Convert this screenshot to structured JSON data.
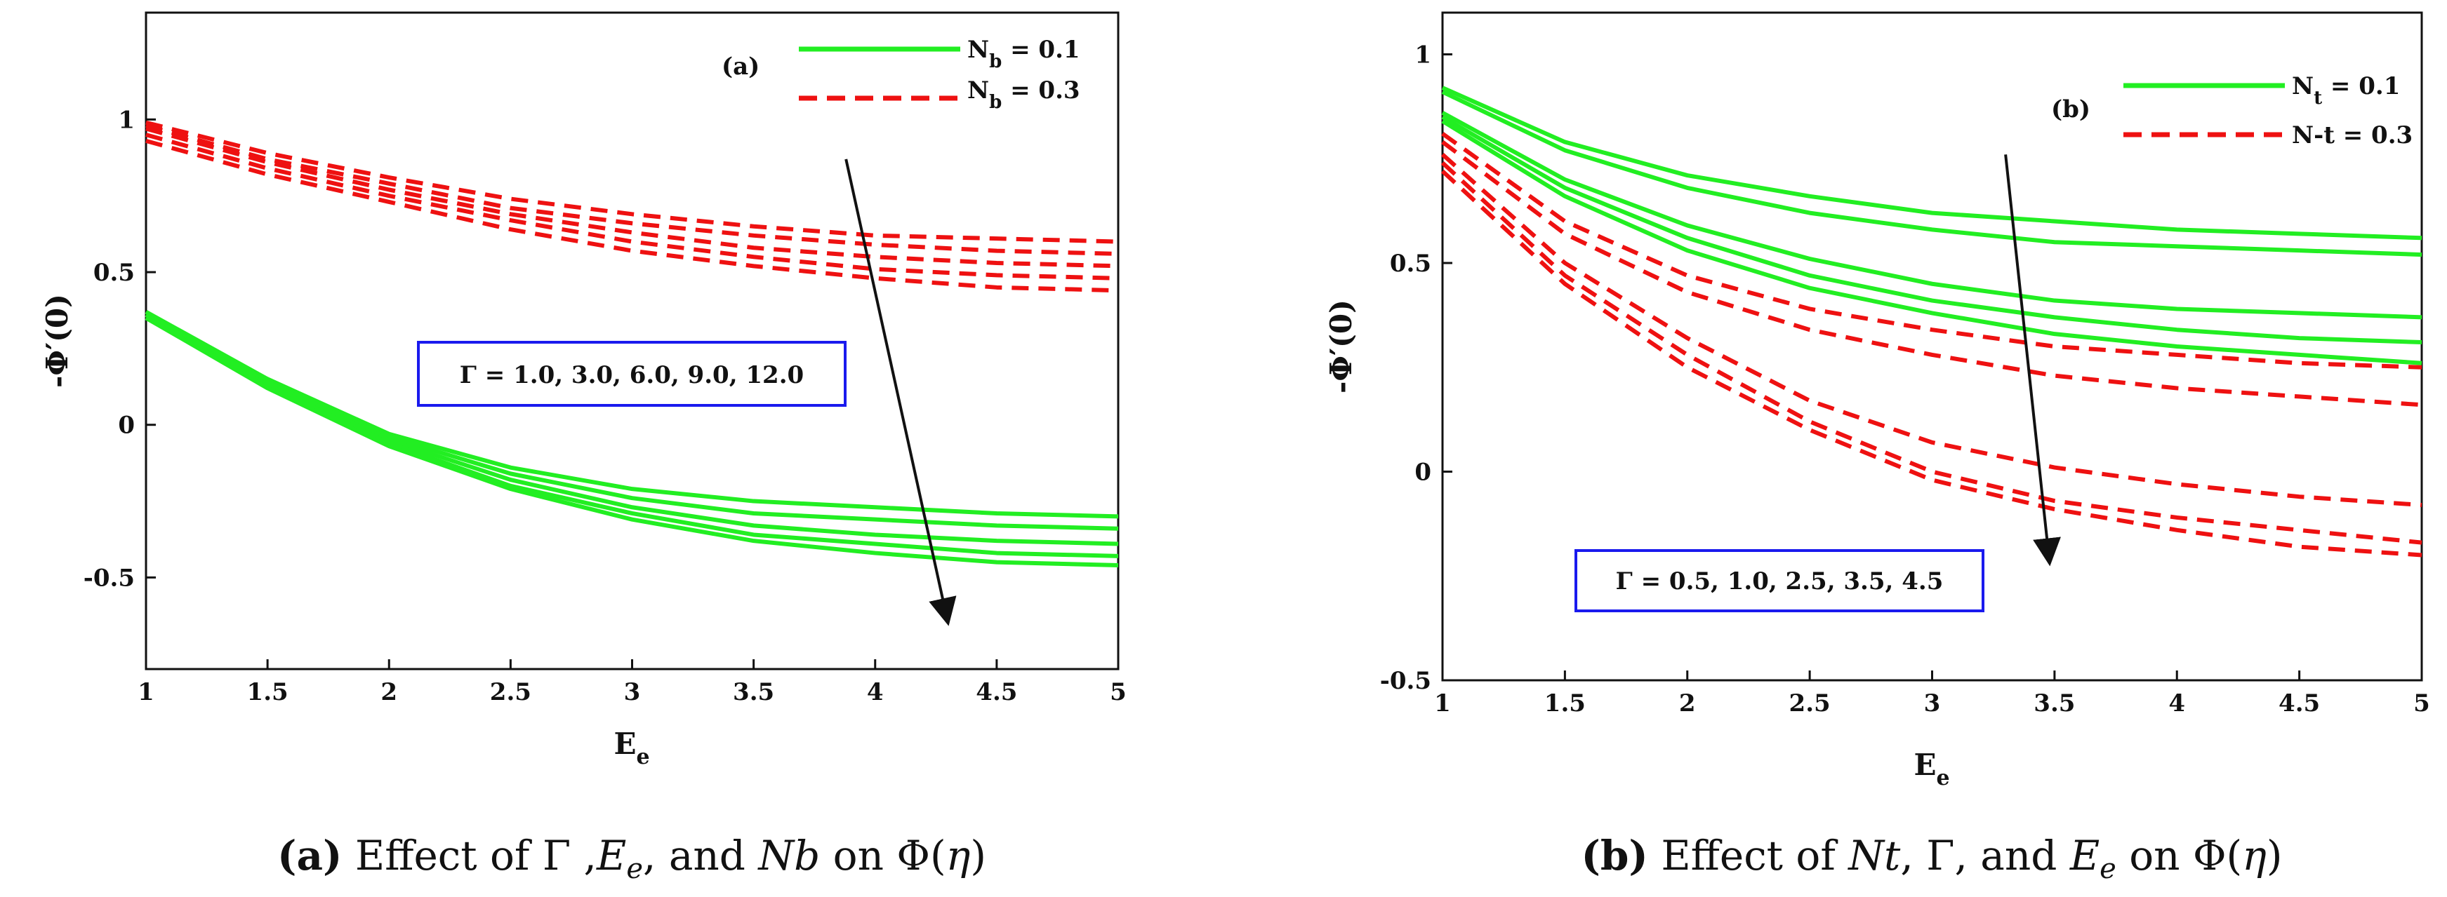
{
  "colors": {
    "green": "#22ee22",
    "red": "#ee1111",
    "axis": "#111111",
    "note_border": "#1a1aee",
    "arrow": "#111111"
  },
  "chart_data": [
    {
      "type": "line",
      "panel_label": "(a)",
      "xlabel": "E",
      "xlabel_sub": "e",
      "ylabel": "-Φ′(0)",
      "xlim": [
        1,
        5
      ],
      "ylim": [
        -0.8,
        1.35
      ],
      "xticks": [
        1,
        1.5,
        2,
        2.5,
        3,
        3.5,
        4,
        4.5,
        5
      ],
      "xtick_labels": [
        "1",
        "1.5",
        "2",
        "2.5",
        "3",
        "3.5",
        "4",
        "4.5",
        "5"
      ],
      "yticks": [
        -0.5,
        0,
        0.5,
        1
      ],
      "ytick_labels": [
        "-0.5",
        "0",
        "0.5",
        "1"
      ],
      "legend": [
        {
          "main": "N",
          "sub": "b",
          "rest": " = 0.1",
          "style": "solid",
          "color": "green"
        },
        {
          "main": "N",
          "sub": "b",
          "rest": " = 0.3",
          "style": "dashed",
          "color": "red"
        }
      ],
      "annotation": "Γ = 1.0, 3.0, 6.0, 9.0, 12.0",
      "arrow": {
        "from": [
          3.88,
          0.87
        ],
        "to": [
          4.3,
          -0.65
        ]
      },
      "x": [
        1,
        1.5,
        2,
        2.5,
        3,
        3.5,
        4,
        4.5,
        5
      ],
      "series": [
        {
          "name": "Nb=0.1, Γ=1.0",
          "color": "green",
          "style": "solid",
          "values": [
            0.37,
            0.15,
            -0.03,
            -0.14,
            -0.21,
            -0.25,
            -0.27,
            -0.29,
            -0.3
          ]
        },
        {
          "name": "Nb=0.1, Γ=3.0",
          "color": "green",
          "style": "solid",
          "values": [
            0.36,
            0.14,
            -0.04,
            -0.16,
            -0.24,
            -0.29,
            -0.31,
            -0.33,
            -0.34
          ]
        },
        {
          "name": "Nb=0.1, Γ=6.0",
          "color": "green",
          "style": "solid",
          "values": [
            0.36,
            0.14,
            -0.05,
            -0.18,
            -0.27,
            -0.33,
            -0.36,
            -0.38,
            -0.39
          ]
        },
        {
          "name": "Nb=0.1, Γ=9.0",
          "color": "green",
          "style": "solid",
          "values": [
            0.35,
            0.13,
            -0.06,
            -0.2,
            -0.29,
            -0.36,
            -0.39,
            -0.42,
            -0.43
          ]
        },
        {
          "name": "Nb=0.1, Γ=12.0",
          "color": "green",
          "style": "solid",
          "values": [
            0.35,
            0.12,
            -0.07,
            -0.21,
            -0.31,
            -0.38,
            -0.42,
            -0.45,
            -0.46
          ]
        },
        {
          "name": "Nb=0.3, Γ=1.0",
          "color": "red",
          "style": "dashed",
          "values": [
            0.99,
            0.89,
            0.81,
            0.74,
            0.69,
            0.65,
            0.62,
            0.61,
            0.6
          ]
        },
        {
          "name": "Nb=0.3, Γ=3.0",
          "color": "red",
          "style": "dashed",
          "values": [
            0.98,
            0.87,
            0.79,
            0.71,
            0.66,
            0.62,
            0.59,
            0.57,
            0.56
          ]
        },
        {
          "name": "Nb=0.3, Γ=6.0",
          "color": "red",
          "style": "dashed",
          "values": [
            0.97,
            0.86,
            0.77,
            0.69,
            0.63,
            0.58,
            0.55,
            0.53,
            0.52
          ]
        },
        {
          "name": "Nb=0.3, Γ=9.0",
          "color": "red",
          "style": "dashed",
          "values": [
            0.95,
            0.84,
            0.75,
            0.67,
            0.6,
            0.55,
            0.51,
            0.49,
            0.48
          ]
        },
        {
          "name": "Nb=0.3, Γ=12.0",
          "color": "red",
          "style": "dashed",
          "values": [
            0.93,
            0.82,
            0.73,
            0.64,
            0.57,
            0.52,
            0.48,
            0.45,
            0.44
          ]
        }
      ]
    },
    {
      "type": "line",
      "panel_label": "(b)",
      "xlabel": "E",
      "xlabel_sub": "e",
      "ylabel": "-Φ′(0)",
      "xlim": [
        1,
        5
      ],
      "ylim": [
        -0.5,
        1.1
      ],
      "xticks": [
        1,
        1.5,
        2,
        2.5,
        3,
        3.5,
        4,
        4.5,
        5
      ],
      "xtick_labels": [
        "1",
        "1.5",
        "2",
        "2.5",
        "3",
        "3.5",
        "4",
        "4.5",
        "5"
      ],
      "yticks": [
        -0.5,
        0,
        0.5,
        1
      ],
      "ytick_labels": [
        "-0.5",
        "0",
        "0.5",
        "1"
      ],
      "legend": [
        {
          "main": "N",
          "sub": "t",
          "rest": " = 0.1",
          "style": "solid",
          "color": "green"
        },
        {
          "main": "N-t = 0.3",
          "sub": "",
          "rest": "",
          "style": "dashed",
          "color": "red"
        }
      ],
      "annotation": "Γ = 0.5, 1.0, 2.5, 3.5, 4.5",
      "arrow": {
        "from": [
          3.3,
          0.76
        ],
        "to": [
          3.48,
          -0.22
        ]
      },
      "x": [
        1,
        1.5,
        2,
        2.5,
        3,
        3.5,
        4,
        4.5,
        5
      ],
      "series": [
        {
          "name": "Nt=0.1, Γ=0.5",
          "color": "green",
          "style": "solid",
          "values": [
            0.92,
            0.79,
            0.71,
            0.66,
            0.62,
            0.6,
            0.58,
            0.57,
            0.56
          ]
        },
        {
          "name": "Nt=0.1, Γ=1.0",
          "color": "green",
          "style": "solid",
          "values": [
            0.91,
            0.77,
            0.68,
            0.62,
            0.58,
            0.55,
            0.54,
            0.53,
            0.52
          ]
        },
        {
          "name": "Nt=0.1, Γ=2.5",
          "color": "green",
          "style": "solid",
          "values": [
            0.86,
            0.7,
            0.59,
            0.51,
            0.45,
            0.41,
            0.39,
            0.38,
            0.37
          ]
        },
        {
          "name": "Nt=0.1, Γ=3.5",
          "color": "green",
          "style": "solid",
          "values": [
            0.85,
            0.68,
            0.56,
            0.47,
            0.41,
            0.37,
            0.34,
            0.32,
            0.31
          ]
        },
        {
          "name": "Nt=0.1, Γ=4.5",
          "color": "green",
          "style": "solid",
          "values": [
            0.84,
            0.66,
            0.53,
            0.44,
            0.38,
            0.33,
            0.3,
            0.28,
            0.26
          ]
        },
        {
          "name": "Nt=0.3, Γ=0.5",
          "color": "red",
          "style": "dashed",
          "values": [
            0.81,
            0.6,
            0.47,
            0.39,
            0.34,
            0.3,
            0.28,
            0.26,
            0.25
          ]
        },
        {
          "name": "Nt=0.3, Γ=1.0",
          "color": "red",
          "style": "dashed",
          "values": [
            0.79,
            0.57,
            0.43,
            0.34,
            0.28,
            0.23,
            0.2,
            0.18,
            0.16
          ]
        },
        {
          "name": "Nt=0.3, Γ=2.5",
          "color": "red",
          "style": "dashed",
          "values": [
            0.76,
            0.5,
            0.32,
            0.17,
            0.07,
            0.01,
            -0.03,
            -0.06,
            -0.08
          ]
        },
        {
          "name": "Nt=0.3, Γ=3.5",
          "color": "red",
          "style": "dashed",
          "values": [
            0.74,
            0.47,
            0.28,
            0.12,
            0.0,
            -0.07,
            -0.11,
            -0.14,
            -0.17
          ]
        },
        {
          "name": "Nt=0.3, Γ=4.5",
          "color": "red",
          "style": "dashed",
          "values": [
            0.72,
            0.45,
            0.25,
            0.1,
            -0.02,
            -0.09,
            -0.14,
            -0.18,
            -0.2
          ]
        }
      ]
    }
  ],
  "captions": [
    {
      "letter": "(a)",
      "text_parts": [
        " Effect of ",
        "Γ",
        " ,",
        "E",
        "e",
        ", and ",
        "Nb",
        " on ",
        "Φ(",
        "η",
        ")"
      ]
    },
    {
      "letter": "(b)",
      "text_parts": [
        " Effect of ",
        "Nt",
        ", ",
        "Γ",
        ", and ",
        "E",
        "e",
        " on ",
        "Φ(",
        "η",
        ")"
      ]
    }
  ]
}
